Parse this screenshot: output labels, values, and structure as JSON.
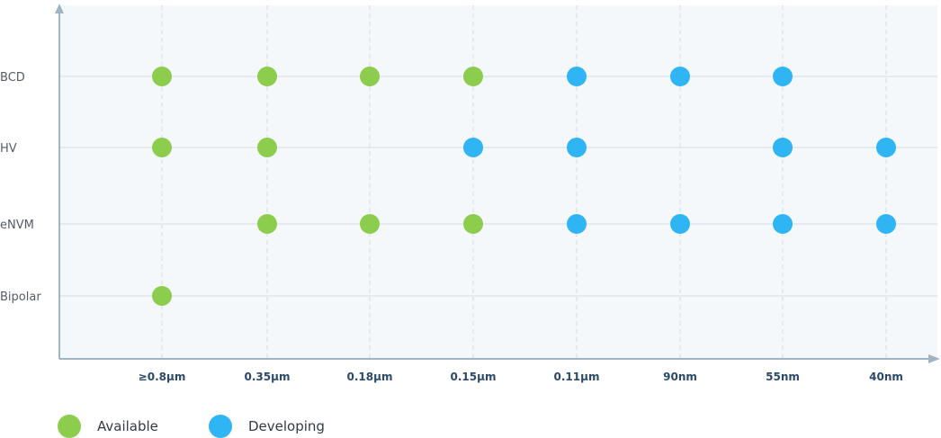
{
  "chart_data": {
    "type": "scatter",
    "title": "",
    "x_categories": [
      "≥0.8μm",
      "0.35μm",
      "0.18μm",
      "0.15μm",
      "0.11μm",
      "90nm",
      "55nm",
      "40nm"
    ],
    "y_categories": [
      "BCD",
      "HV",
      "eNVM",
      "Bipolar"
    ],
    "series": [
      {
        "name": "Available",
        "color": "#8dcd4e",
        "points": [
          {
            "x": "≥0.8μm",
            "y": "BCD"
          },
          {
            "x": "0.35μm",
            "y": "BCD"
          },
          {
            "x": "0.18μm",
            "y": "BCD"
          },
          {
            "x": "0.15μm",
            "y": "BCD"
          },
          {
            "x": "≥0.8μm",
            "y": "HV"
          },
          {
            "x": "0.35μm",
            "y": "HV"
          },
          {
            "x": "0.35μm",
            "y": "eNVM"
          },
          {
            "x": "0.18μm",
            "y": "eNVM"
          },
          {
            "x": "0.15μm",
            "y": "eNVM"
          },
          {
            "x": "≥0.8μm",
            "y": "Bipolar"
          }
        ]
      },
      {
        "name": "Developing",
        "color": "#2fb5f3",
        "points": [
          {
            "x": "0.11μm",
            "y": "BCD"
          },
          {
            "x": "90nm",
            "y": "BCD"
          },
          {
            "x": "55nm",
            "y": "BCD"
          },
          {
            "x": "0.15μm",
            "y": "HV"
          },
          {
            "x": "0.11μm",
            "y": "HV"
          },
          {
            "x": "55nm",
            "y": "HV"
          },
          {
            "x": "40nm",
            "y": "HV"
          },
          {
            "x": "0.11μm",
            "y": "eNVM"
          },
          {
            "x": "90nm",
            "y": "eNVM"
          },
          {
            "x": "55nm",
            "y": "eNVM"
          },
          {
            "x": "40nm",
            "y": "eNVM"
          }
        ]
      }
    ],
    "grid": true,
    "legend_position": "bottom-left"
  },
  "legend": {
    "available_label": "Available",
    "developing_label": "Developing"
  },
  "colors": {
    "available": "#8dcd4e",
    "developing": "#2fb5f3",
    "axis": "#9fb4c4",
    "plot_bg": "#f5f8fb",
    "grid": "#d5dde4"
  }
}
